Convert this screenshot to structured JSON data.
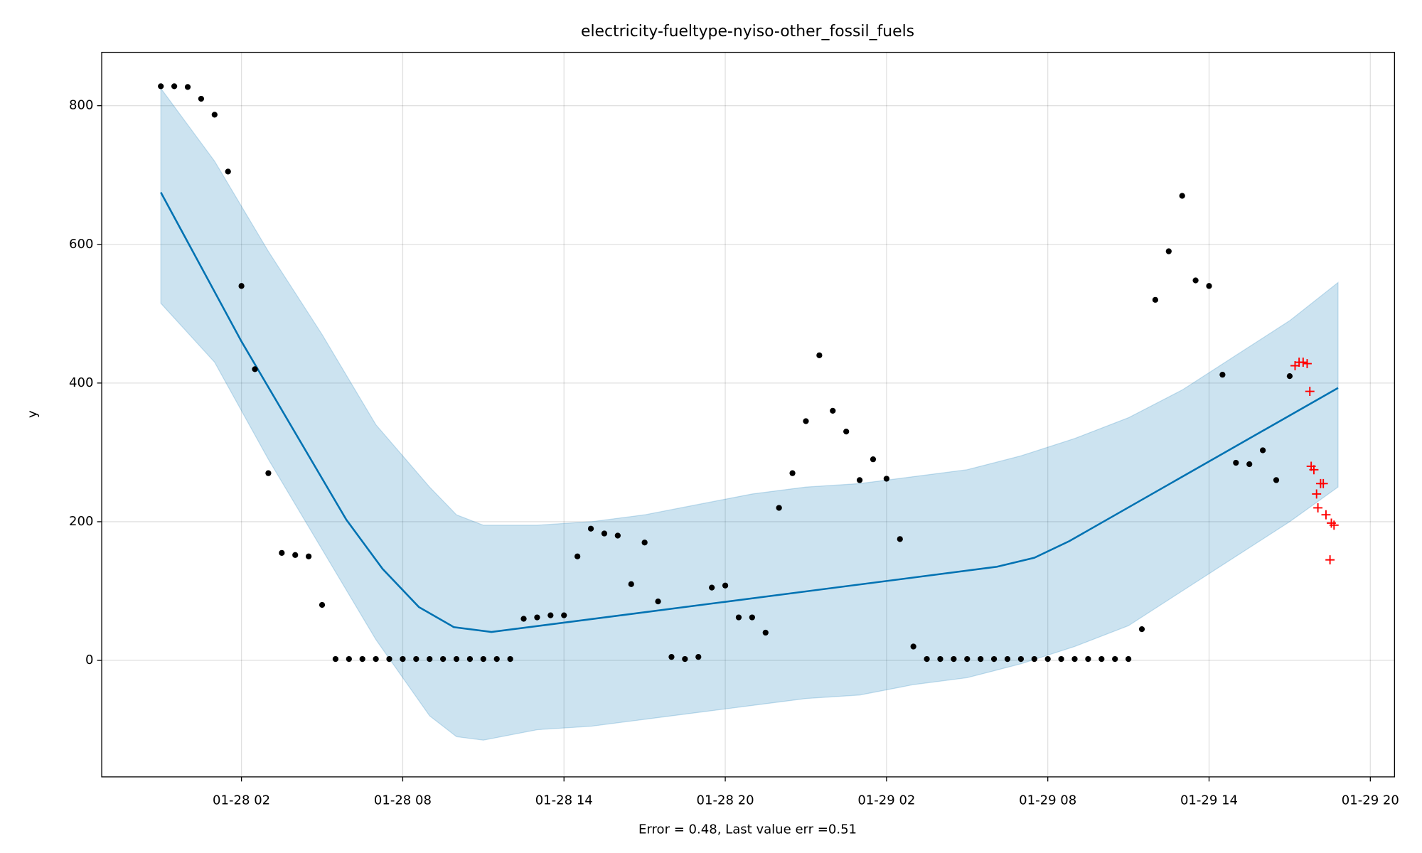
{
  "chart_data": {
    "type": "forecast",
    "title": "electricity-fueltype-nyiso-other_fossil_fuels",
    "x_label": "Error = 0.48, Last value err =0.51",
    "y_label": "y",
    "xlim": [
      -3.2,
      44.9
    ],
    "ylim": [
      -168,
      877
    ],
    "xticks": [
      {
        "value": 2,
        "label": "01-28 02"
      },
      {
        "value": 8,
        "label": "01-28 08"
      },
      {
        "value": 14,
        "label": "01-28 14"
      },
      {
        "value": 20,
        "label": "01-28 20"
      },
      {
        "value": 26,
        "label": "01-29 02"
      },
      {
        "value": 32,
        "label": "01-29 08"
      },
      {
        "value": 38,
        "label": "01-29 14"
      },
      {
        "value": 44,
        "label": "01-29 20"
      }
    ],
    "yticks": [
      0,
      200,
      400,
      600,
      800
    ],
    "grid": true,
    "series": [
      {
        "kind": "band",
        "color": "#0072b2",
        "x": [
          -1,
          1,
          3,
          5,
          7,
          9,
          10,
          11,
          13,
          15,
          17,
          19,
          21,
          23,
          25,
          27,
          29,
          31,
          33,
          35,
          37,
          39,
          41,
          42.8
        ],
        "upper": [
          825,
          720,
          590,
          470,
          340,
          250,
          210,
          195,
          195,
          200,
          210,
          225,
          240,
          250,
          255,
          265,
          275,
          295,
          320,
          350,
          390,
          440,
          490,
          545
        ],
        "lower": [
          515,
          430,
          290,
          160,
          30,
          -80,
          -110,
          -115,
          -100,
          -95,
          -85,
          -75,
          -65,
          -55,
          -50,
          -35,
          -25,
          -5,
          20,
          50,
          100,
          150,
          200,
          250
        ]
      },
      {
        "kind": "line",
        "color": "#0072b2",
        "x": [
          -1,
          2,
          5.9,
          7.25,
          8.6,
          9.9,
          11.3,
          30.1,
          31.5,
          32.8,
          42.8
        ],
        "values": [
          675,
          460,
          203,
          132,
          77,
          48,
          41,
          135,
          148,
          172,
          393
        ]
      },
      {
        "kind": "dots",
        "color": "#000000",
        "x": [
          -1,
          -0.5,
          0,
          0.5,
          1,
          1.5,
          2,
          2.5,
          3,
          3.5,
          4,
          4.5,
          5,
          5.5,
          6,
          6.5,
          7,
          7.5,
          8,
          8.5,
          9,
          9.5,
          10,
          10.5,
          11,
          11.5,
          12,
          12.5,
          13,
          13.5,
          14,
          14.5,
          15,
          15.5,
          16,
          16.5,
          17,
          17.5,
          18,
          18.5,
          19,
          19.5,
          20,
          20.5,
          21,
          21.5,
          22,
          22.5,
          23,
          23.5,
          24,
          24.5,
          25,
          25.5,
          26,
          26.5,
          27,
          27.5,
          28,
          28.5,
          29,
          29.5,
          30,
          30.5,
          31,
          31.5,
          32,
          32.5,
          33,
          33.5,
          34,
          34.5,
          35,
          35.5,
          36,
          36.5,
          37,
          37.5,
          38,
          38.5,
          39,
          39.5,
          40,
          40.5,
          41
        ],
        "values": [
          828,
          828,
          827,
          810,
          787,
          705,
          540,
          420,
          270,
          155,
          152,
          150,
          80,
          2,
          2,
          2,
          2,
          2,
          2,
          2,
          2,
          2,
          2,
          2,
          2,
          2,
          2,
          60,
          62,
          65,
          65,
          150,
          190,
          183,
          180,
          110,
          170,
          85,
          5,
          2,
          5,
          105,
          108,
          62,
          62,
          40,
          220,
          270,
          345,
          440,
          360,
          330,
          260,
          290,
          262,
          175,
          20,
          2,
          2,
          2,
          2,
          2,
          2,
          2,
          2,
          2,
          2,
          2,
          2,
          2,
          2,
          2,
          2,
          45,
          520,
          590,
          670,
          548,
          540,
          412,
          285,
          283,
          303,
          260,
          410
        ]
      },
      {
        "kind": "plus",
        "color": "#ff0000",
        "x": [
          41.2,
          41.35,
          41.5,
          41.65,
          41.75,
          41.8,
          41.9,
          42.0,
          42.05,
          42.15,
          42.25,
          42.35,
          42.5,
          42.55,
          42.65
        ],
        "values": [
          425,
          430,
          430,
          428,
          388,
          280,
          275,
          240,
          220,
          255,
          255,
          210,
          145,
          198,
          195
        ]
      }
    ]
  }
}
